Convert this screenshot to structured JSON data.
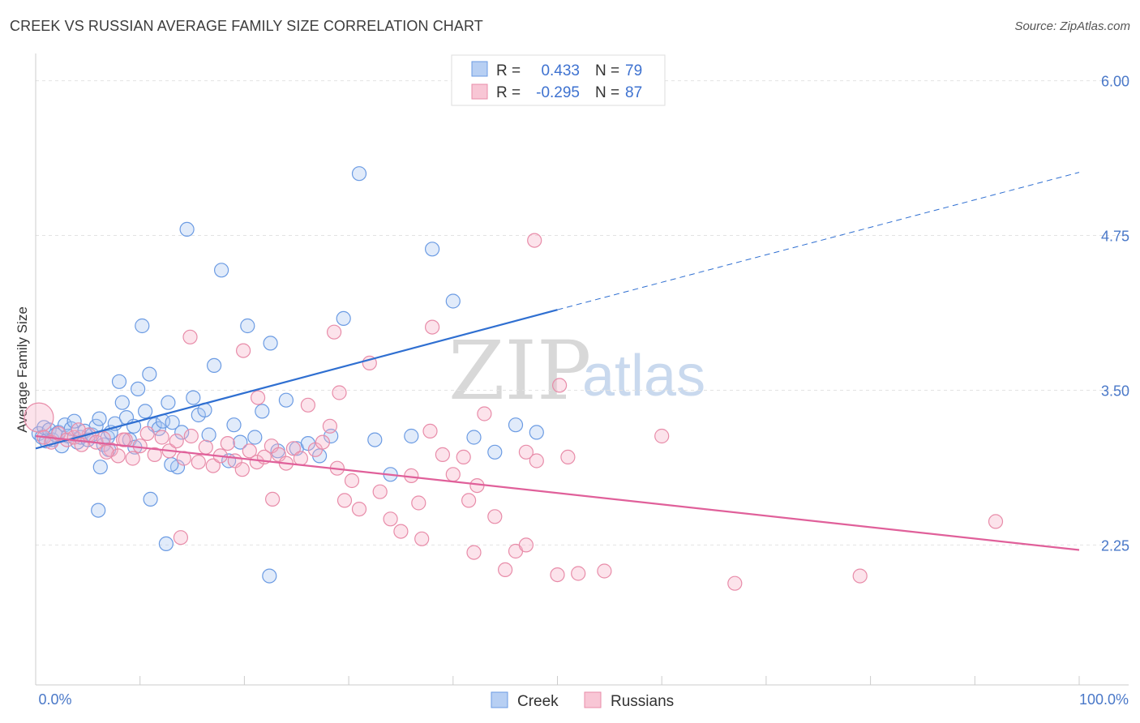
{
  "title": "CREEK VS RUSSIAN AVERAGE FAMILY SIZE CORRELATION CHART",
  "source": "Source: ZipAtlas.com",
  "watermark": {
    "zip": "ZIP",
    "atlas": "atlas"
  },
  "legend": {
    "r_label": "R =",
    "n_label": "N =",
    "series": [
      {
        "r": "0.433",
        "n": "79"
      },
      {
        "r": "-0.295",
        "n": "87"
      }
    ]
  },
  "chart_data": {
    "type": "scatter",
    "title": "CREEK VS RUSSIAN AVERAGE FAMILY SIZE CORRELATION CHART",
    "xlabel": "",
    "ylabel": "Average Family Size",
    "xlim": [
      0,
      100
    ],
    "ylim": [
      1.12,
      6.22
    ],
    "x_tick_labels": [
      "0.0%",
      "100.0%"
    ],
    "y_ticks": [
      2.25,
      3.5,
      4.75,
      6.0
    ],
    "y_tick_labels": [
      "2.25",
      "3.50",
      "4.75",
      "6.00"
    ],
    "series": [
      {
        "name": "Creek",
        "color": "#6b9be3",
        "fill": "rgba(168,197,240,0.35)",
        "line_color": "#2f6fd1",
        "trend": {
          "x0": 0,
          "y0": 3.03,
          "x1": 50,
          "y1": 4.15,
          "dash_to_x": 100,
          "dash_to_y": 5.26
        },
        "points": [
          [
            0.3,
            3.15
          ],
          [
            0.6,
            3.12
          ],
          [
            0.8,
            3.2
          ],
          [
            1.0,
            3.09
          ],
          [
            1.3,
            3.18
          ],
          [
            1.6,
            3.1
          ],
          [
            1.9,
            3.14
          ],
          [
            2.2,
            3.16
          ],
          [
            2.5,
            3.05
          ],
          [
            2.8,
            3.22
          ],
          [
            3.1,
            3.13
          ],
          [
            3.4,
            3.19
          ],
          [
            3.7,
            3.25
          ],
          [
            4.0,
            3.08
          ],
          [
            4.3,
            3.12
          ],
          [
            4.7,
            3.17
          ],
          [
            5.0,
            3.1
          ],
          [
            5.4,
            3.14
          ],
          [
            5.8,
            3.21
          ],
          [
            6.1,
            3.27
          ],
          [
            6.5,
            3.06
          ],
          [
            6.9,
            3.12
          ],
          [
            7.2,
            3.16
          ],
          [
            7.6,
            3.23
          ],
          [
            8.0,
            3.57
          ],
          [
            8.3,
            3.4
          ],
          [
            8.7,
            3.28
          ],
          [
            9.0,
            3.1
          ],
          [
            9.4,
            3.21
          ],
          [
            9.8,
            3.51
          ],
          [
            10.2,
            4.02
          ],
          [
            10.5,
            3.33
          ],
          [
            10.9,
            3.63
          ],
          [
            11.4,
            3.22
          ],
          [
            11.8,
            3.19
          ],
          [
            12.2,
            3.25
          ],
          [
            12.7,
            3.4
          ],
          [
            13.1,
            3.24
          ],
          [
            13.6,
            2.88
          ],
          [
            14.0,
            3.16
          ],
          [
            14.5,
            4.8
          ],
          [
            15.1,
            3.44
          ],
          [
            15.6,
            3.3
          ],
          [
            16.2,
            3.34
          ],
          [
            16.6,
            3.14
          ],
          [
            17.1,
            3.7
          ],
          [
            17.8,
            4.47
          ],
          [
            18.5,
            2.93
          ],
          [
            19.0,
            3.22
          ],
          [
            19.6,
            3.08
          ],
          [
            20.3,
            4.02
          ],
          [
            21.0,
            3.12
          ],
          [
            21.7,
            3.33
          ],
          [
            22.5,
            3.88
          ],
          [
            23.2,
            3.01
          ],
          [
            24.0,
            3.42
          ],
          [
            25.0,
            3.03
          ],
          [
            26.1,
            3.07
          ],
          [
            27.2,
            2.97
          ],
          [
            28.3,
            3.13
          ],
          [
            29.5,
            4.08
          ],
          [
            31.0,
            5.25
          ],
          [
            32.5,
            3.1
          ],
          [
            34.0,
            2.82
          ],
          [
            36.0,
            3.13
          ],
          [
            38.0,
            4.64
          ],
          [
            40.0,
            4.22
          ],
          [
            42.0,
            3.12
          ],
          [
            44.0,
            3.0
          ],
          [
            46.0,
            3.22
          ],
          [
            48.0,
            3.16
          ],
          [
            7.0,
            3.02
          ],
          [
            9.5,
            3.04
          ],
          [
            11.0,
            2.62
          ],
          [
            12.5,
            2.26
          ],
          [
            13.0,
            2.9
          ],
          [
            6.2,
            2.88
          ],
          [
            6.0,
            2.53
          ],
          [
            22.4,
            2.0
          ]
        ]
      },
      {
        "name": "Russians",
        "color": "#e88ca9",
        "fill": "rgba(246,176,198,0.35)",
        "line_color": "#e0609a",
        "trend": {
          "x0": 0,
          "y0": 3.13,
          "x1": 100,
          "y1": 2.21
        },
        "points": [
          [
            0.3,
            3.28
          ],
          [
            0.8,
            3.12
          ],
          [
            1.5,
            3.08
          ],
          [
            2.2,
            3.15
          ],
          [
            3.0,
            3.1
          ],
          [
            3.7,
            3.12
          ],
          [
            4.4,
            3.06
          ],
          [
            5.1,
            3.14
          ],
          [
            5.8,
            3.08
          ],
          [
            6.5,
            3.11
          ],
          [
            7.2,
            3.02
          ],
          [
            7.9,
            2.97
          ],
          [
            8.6,
            3.1
          ],
          [
            9.3,
            2.95
          ],
          [
            10.0,
            3.05
          ],
          [
            10.7,
            3.15
          ],
          [
            11.4,
            2.98
          ],
          [
            12.1,
            3.12
          ],
          [
            12.8,
            3.01
          ],
          [
            13.5,
            3.09
          ],
          [
            14.2,
            2.95
          ],
          [
            14.9,
            3.13
          ],
          [
            15.6,
            2.92
          ],
          [
            16.3,
            3.04
          ],
          [
            17.0,
            2.89
          ],
          [
            17.7,
            2.97
          ],
          [
            18.4,
            3.07
          ],
          [
            19.1,
            2.93
          ],
          [
            19.8,
            2.86
          ],
          [
            20.5,
            3.01
          ],
          [
            21.2,
            2.92
          ],
          [
            21.9,
            2.96
          ],
          [
            22.6,
            3.05
          ],
          [
            23.3,
            2.98
          ],
          [
            24.0,
            2.91
          ],
          [
            24.7,
            3.03
          ],
          [
            25.4,
            2.95
          ],
          [
            26.1,
            3.38
          ],
          [
            26.8,
            3.02
          ],
          [
            27.5,
            3.08
          ],
          [
            28.2,
            3.21
          ],
          [
            28.9,
            2.87
          ],
          [
            29.6,
            2.61
          ],
          [
            30.3,
            2.77
          ],
          [
            31.0,
            2.54
          ],
          [
            32.0,
            3.72
          ],
          [
            33.0,
            2.68
          ],
          [
            34.0,
            2.46
          ],
          [
            35.0,
            2.36
          ],
          [
            36.0,
            2.81
          ],
          [
            37.0,
            2.3
          ],
          [
            38.0,
            4.01
          ],
          [
            39.0,
            2.98
          ],
          [
            40.0,
            2.82
          ],
          [
            41.0,
            2.96
          ],
          [
            42.0,
            2.19
          ],
          [
            43.0,
            3.31
          ],
          [
            44.0,
            2.48
          ],
          [
            45.0,
            2.05
          ],
          [
            46.0,
            2.2
          ],
          [
            47.0,
            2.25
          ],
          [
            48.0,
            2.93
          ],
          [
            50.0,
            2.01
          ],
          [
            51.0,
            2.96
          ],
          [
            52.0,
            2.02
          ],
          [
            54.5,
            2.04
          ],
          [
            60.0,
            3.13
          ],
          [
            67.0,
            1.94
          ],
          [
            79.0,
            2.0
          ],
          [
            92.0,
            2.44
          ],
          [
            47.8,
            4.71
          ],
          [
            47.0,
            3.0
          ],
          [
            50.2,
            3.54
          ],
          [
            42.3,
            2.73
          ],
          [
            41.5,
            2.61
          ],
          [
            37.8,
            3.17
          ],
          [
            36.7,
            2.59
          ],
          [
            29.1,
            3.48
          ],
          [
            28.6,
            3.97
          ],
          [
            22.7,
            2.62
          ],
          [
            21.3,
            3.44
          ],
          [
            19.9,
            3.82
          ],
          [
            14.8,
            3.93
          ],
          [
            13.9,
            2.31
          ],
          [
            8.4,
            3.1
          ],
          [
            6.8,
            3.0
          ],
          [
            4.1,
            3.18
          ]
        ]
      }
    ]
  }
}
